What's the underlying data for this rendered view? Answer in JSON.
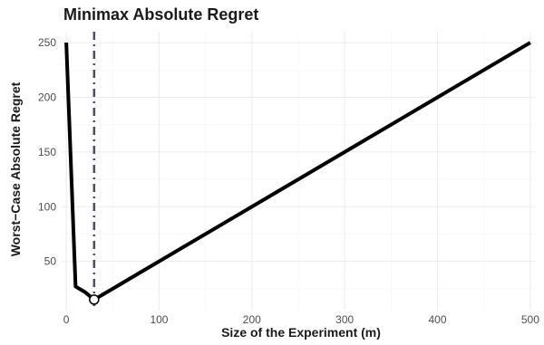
{
  "chart_data": {
    "type": "line",
    "title": "Minimax Absolute Regret",
    "xlabel": "Size of the Experiment (m)",
    "ylabel": "Worst−Case Absolute Regret",
    "xlim": [
      -5,
      505
    ],
    "ylim": [
      5,
      260
    ],
    "x_ticks": [
      "0",
      "100",
      "200",
      "300",
      "400",
      "500"
    ],
    "y_ticks": [
      "50",
      "100",
      "150",
      "200",
      "250"
    ],
    "x_tick_values": [
      0,
      100,
      200,
      300,
      400,
      500
    ],
    "y_tick_values": [
      50,
      100,
      150,
      200,
      250
    ],
    "grid": true,
    "series": [
      {
        "x": [
          0,
          10,
          20,
          30,
          40,
          100,
          200,
          300,
          400,
          500
        ],
        "y": [
          250,
          27,
          22,
          15,
          20,
          50,
          100,
          150,
          200,
          250
        ]
      }
    ],
    "optimum": {
      "x": 30,
      "y": 15
    },
    "vline_x": 30,
    "colors": {
      "line": "#000000",
      "vline": "#4a4f5c",
      "marker_fill": "#ffffff"
    }
  }
}
